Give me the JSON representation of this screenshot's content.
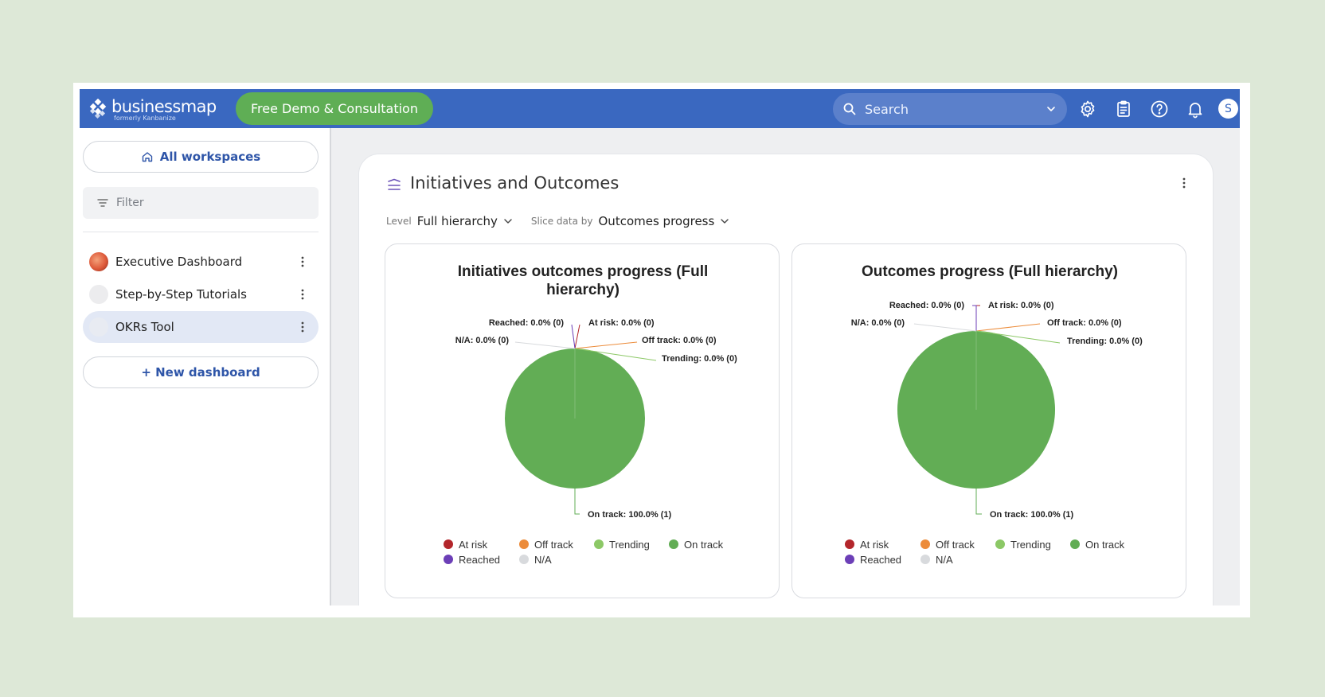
{
  "colors": {
    "topbar": "#3a68c0",
    "demo_button": "#5fae55",
    "link": "#2e55a8",
    "on_track": "#62ad55",
    "at_risk": "#b3262b",
    "off_track": "#ec8c3b",
    "trending": "#8cc866",
    "reached": "#6c3fb7",
    "na": "#d8dadd"
  },
  "header": {
    "brand": "businessmap",
    "brand_sub": "formerly Kanbanize",
    "demo_button": "Free Demo & Consultation",
    "search_placeholder": "Search",
    "icons": [
      "settings-icon",
      "clipboard-icon",
      "help-icon",
      "bell-icon"
    ],
    "avatar_initial": "S"
  },
  "sidebar": {
    "all_workspaces": "All workspaces",
    "filter_placeholder": "Filter",
    "dashboards": [
      {
        "label": "Executive Dashboard",
        "active": false
      },
      {
        "label": "Step-by-Step Tutorials",
        "active": false
      },
      {
        "label": "OKRs Tool",
        "active": true
      }
    ],
    "new_dashboard": "+ New dashboard"
  },
  "widget": {
    "title": "Initiatives and Outcomes",
    "level_label": "Level",
    "level_value": "Full hierarchy",
    "slice_label": "Slice data by",
    "slice_value": "Outcomes progress"
  },
  "chart_data": [
    {
      "type": "pie",
      "title": "Initiatives outcomes progress (Full hierarchy)",
      "title_lines": [
        "Initiatives outcomes progress (Full",
        "hierarchy)"
      ],
      "slices": [
        {
          "name": "At risk",
          "percent": 0.0,
          "count": 0,
          "label": "At risk: 0.0% (0)"
        },
        {
          "name": "Off track",
          "percent": 0.0,
          "count": 0,
          "label": "Off track: 0.0% (0)"
        },
        {
          "name": "Trending",
          "percent": 0.0,
          "count": 0,
          "label": "Trending: 0.0% (0)"
        },
        {
          "name": "On track",
          "percent": 100.0,
          "count": 1,
          "label": "On track: 100.0% (1)"
        },
        {
          "name": "Reached",
          "percent": 0.0,
          "count": 0,
          "label": "Reached: 0.0% (0)"
        },
        {
          "name": "N/A",
          "percent": 0.0,
          "count": 0,
          "label": "N/A: 0.0% (0)"
        }
      ],
      "legend": [
        "At risk",
        "Off track",
        "Trending",
        "On track",
        "Reached",
        "N/A"
      ],
      "legend_placement": "bottom"
    },
    {
      "type": "pie",
      "title": "Outcomes progress (Full hierarchy)",
      "title_lines": [
        "Outcomes progress (Full hierarchy)"
      ],
      "slices": [
        {
          "name": "At risk",
          "percent": 0.0,
          "count": 0,
          "label": "At risk: 0.0% (0)"
        },
        {
          "name": "Off track",
          "percent": 0.0,
          "count": 0,
          "label": "Off track: 0.0% (0)"
        },
        {
          "name": "Trending",
          "percent": 0.0,
          "count": 0,
          "label": "Trending: 0.0% (0)"
        },
        {
          "name": "On track",
          "percent": 100.0,
          "count": 1,
          "label": "On track: 100.0% (1)"
        },
        {
          "name": "Reached",
          "percent": 0.0,
          "count": 0,
          "label": "Reached: 0.0% (0)"
        },
        {
          "name": "N/A",
          "percent": 0.0,
          "count": 0,
          "label": "N/A: 0.0% (0)"
        }
      ],
      "legend": [
        "At risk",
        "Off track",
        "Trending",
        "On track",
        "Reached",
        "N/A"
      ],
      "legend_placement": "bottom"
    }
  ]
}
